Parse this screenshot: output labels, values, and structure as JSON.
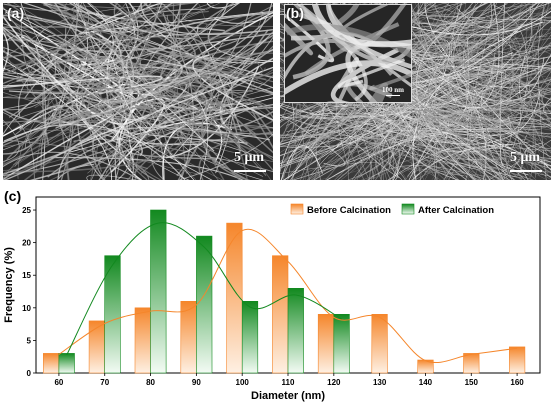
{
  "panels": {
    "a": {
      "tag": "(a)",
      "scale": "5 μm"
    },
    "b": {
      "tag": "(b)",
      "scale": "5 μm",
      "inset_scale": "100 nm"
    }
  },
  "chart_tag": "(c)",
  "colors": {
    "before": "#f5862b",
    "after": "#12891f"
  },
  "chart_data": {
    "type": "bar",
    "xlabel": "Diameter (nm)",
    "ylabel": "Frequency (%)",
    "xlim": [
      55,
      165
    ],
    "ylim": [
      0,
      27
    ],
    "xticks": [
      60,
      70,
      80,
      90,
      100,
      110,
      120,
      130,
      140,
      150,
      160
    ],
    "yticks": [
      0,
      5,
      10,
      15,
      20,
      25
    ],
    "legend_position": "top-right",
    "series": [
      {
        "name": "Before Calcination",
        "x": [
          60,
          70,
          80,
          90,
          100,
          110,
          120,
          130,
          140,
          150,
          160
        ],
        "values": [
          3,
          8,
          10,
          11,
          23,
          18,
          9,
          9,
          2,
          3,
          4
        ]
      },
      {
        "name": "After Calcination",
        "x": [
          60,
          70,
          80,
          90,
          100,
          110,
          120
        ],
        "values": [
          3,
          18,
          25,
          21,
          11,
          13,
          9
        ]
      }
    ]
  }
}
